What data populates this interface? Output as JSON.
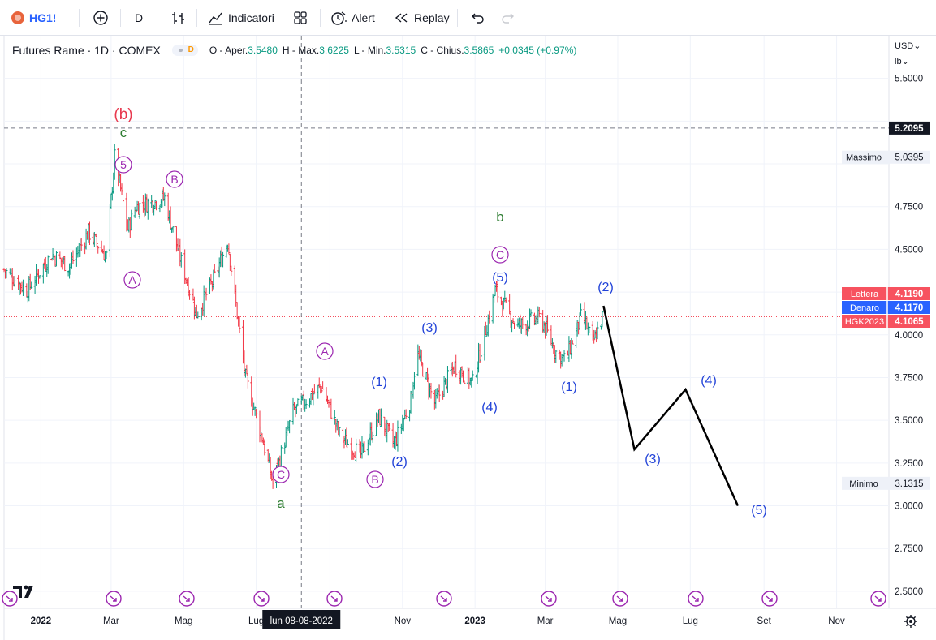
{
  "toolbar": {
    "symbol": "HG1!",
    "interval": "D",
    "indicators_label": "Indicatori",
    "alert_label": "Alert",
    "replay_label": "Replay"
  },
  "legend": {
    "title": "Futures Rame · 1D · COMEX",
    "badge_letter": "D",
    "open_label": "O - Aper.",
    "open_value": "3.5480",
    "high_label": "H - Max.",
    "high_value": "3.6225",
    "low_label": "L - Min.",
    "low_value": "3.5315",
    "close_label": "C - Chius.",
    "close_value": "3.5865",
    "change_value": "+0.0345 (+0.97%)"
  },
  "price_axis": {
    "currency": "USD",
    "unit": "lb",
    "ticks": [
      "5.5000",
      "4.7500",
      "4.5000",
      "4.0000",
      "3.7500",
      "3.5000",
      "3.2500",
      "3.0000",
      "2.7500",
      "2.5000"
    ]
  },
  "time_axis": {
    "labels": [
      "2022",
      "Mar",
      "Mag",
      "Lug",
      "Nov",
      "2023",
      "Mar",
      "Mag",
      "Lug",
      "Set",
      "Nov"
    ],
    "crosshair_label": "lun 08-08-2022"
  },
  "price_labels": {
    "crosshair": {
      "text": "5.2095",
      "color": "#131722"
    },
    "massimo": {
      "name": "Massimo",
      "value": "5.0395"
    },
    "minimo": {
      "name": "Minimo",
      "value": "3.1315"
    },
    "lettera": {
      "name": "Lettera",
      "value": "4.1190",
      "color": "#f7525f"
    },
    "denaro": {
      "name": "Denaro",
      "value": "4.1170",
      "color": "#2962ff"
    },
    "contract": {
      "name": "HGK2023",
      "value": "4.1065",
      "color": "#f7525f"
    }
  },
  "colors": {
    "up": "#089981",
    "down": "#f23645",
    "wave_blue": "#2142d8",
    "wave_purple": "#9c27b0",
    "wave_green": "#2e7d32",
    "wave_red": "#e8394f",
    "projection": "#000000"
  },
  "waves": {
    "b_top": "(b)",
    "c_top": "c",
    "five_circle": "5",
    "B_circle_1": "B",
    "A_circle_1": "A",
    "A_circle_2": "A",
    "C_circle_1": "C",
    "a_low": "a",
    "B_circle_2": "B",
    "w1": "(1)",
    "w2": "(2)",
    "w3": "(3)",
    "w4": "(4)",
    "w5": "(5)",
    "C_circle_2": "C",
    "b_mid": "b",
    "p1": "(1)",
    "p2": "(2)",
    "p3": "(3)",
    "p4": "(4)",
    "p5": "(5)"
  },
  "chart_data": {
    "type": "ohlc",
    "symbol": "HG1!",
    "interval": "1D",
    "exchange": "COMEX",
    "y_axis": {
      "ylim": [
        2.4,
        5.75
      ],
      "scale": "linear",
      "grid": true
    },
    "x_axis": {
      "xlim": [
        "2021-12-01",
        "2023-12-15"
      ]
    },
    "series": [
      {
        "kind": "swing_path_approx",
        "points": [
          {
            "date": "2021-12-01",
            "price": 4.38
          },
          {
            "date": "2021-12-20",
            "price": 4.26
          },
          {
            "date": "2022-01-10",
            "price": 4.47
          },
          {
            "date": "2022-01-25",
            "price": 4.4
          },
          {
            "date": "2022-02-10",
            "price": 4.6
          },
          {
            "date": "2022-02-25",
            "price": 4.46
          },
          {
            "date": "2022-03-04",
            "price": 5.04
          },
          {
            "date": "2022-03-15",
            "price": 4.62
          },
          {
            "date": "2022-03-22",
            "price": 4.75
          },
          {
            "date": "2022-04-15",
            "price": 4.8
          },
          {
            "date": "2022-04-26",
            "price": 4.5
          },
          {
            "date": "2022-05-12",
            "price": 4.12
          },
          {
            "date": "2022-05-28",
            "price": 4.35
          },
          {
            "date": "2022-06-07",
            "price": 4.55
          },
          {
            "date": "2022-06-22",
            "price": 3.75
          },
          {
            "date": "2022-07-06",
            "price": 3.4
          },
          {
            "date": "2022-07-15",
            "price": 3.1315
          },
          {
            "date": "2022-08-01",
            "price": 3.55
          },
          {
            "date": "2022-08-25",
            "price": 3.7
          },
          {
            "date": "2022-09-10",
            "price": 3.4
          },
          {
            "date": "2022-09-27",
            "price": 3.3
          },
          {
            "date": "2022-10-12",
            "price": 3.52
          },
          {
            "date": "2022-10-25",
            "price": 3.36
          },
          {
            "date": "2022-11-08",
            "price": 3.62
          },
          {
            "date": "2022-11-13",
            "price": 3.9
          },
          {
            "date": "2022-11-28",
            "price": 3.6
          },
          {
            "date": "2022-12-15",
            "price": 3.82
          },
          {
            "date": "2022-12-30",
            "price": 3.72
          },
          {
            "date": "2023-01-18",
            "price": 4.26
          },
          {
            "date": "2023-02-05",
            "price": 4.05
          },
          {
            "date": "2023-02-25",
            "price": 4.1
          },
          {
            "date": "2023-03-10",
            "price": 3.9
          },
          {
            "date": "2023-03-18",
            "price": 3.85
          },
          {
            "date": "2023-04-01",
            "price": 4.12
          },
          {
            "date": "2023-04-10",
            "price": 3.95
          },
          {
            "date": "2023-04-19",
            "price": 4.12
          }
        ]
      },
      {
        "kind": "projection",
        "points": [
          {
            "date": "2023-04-19",
            "price": 4.17
          },
          {
            "date": "2023-05-15",
            "price": 3.33
          },
          {
            "date": "2023-06-27",
            "price": 3.68
          },
          {
            "date": "2023-08-10",
            "price": 3.0
          }
        ]
      }
    ],
    "hlines": [
      {
        "price": 5.2095,
        "style": "dashed"
      },
      {
        "price": 4.1065,
        "style": "dotted"
      }
    ],
    "vlines": [
      {
        "date": "2022-08-08",
        "style": "dashed"
      }
    ]
  }
}
